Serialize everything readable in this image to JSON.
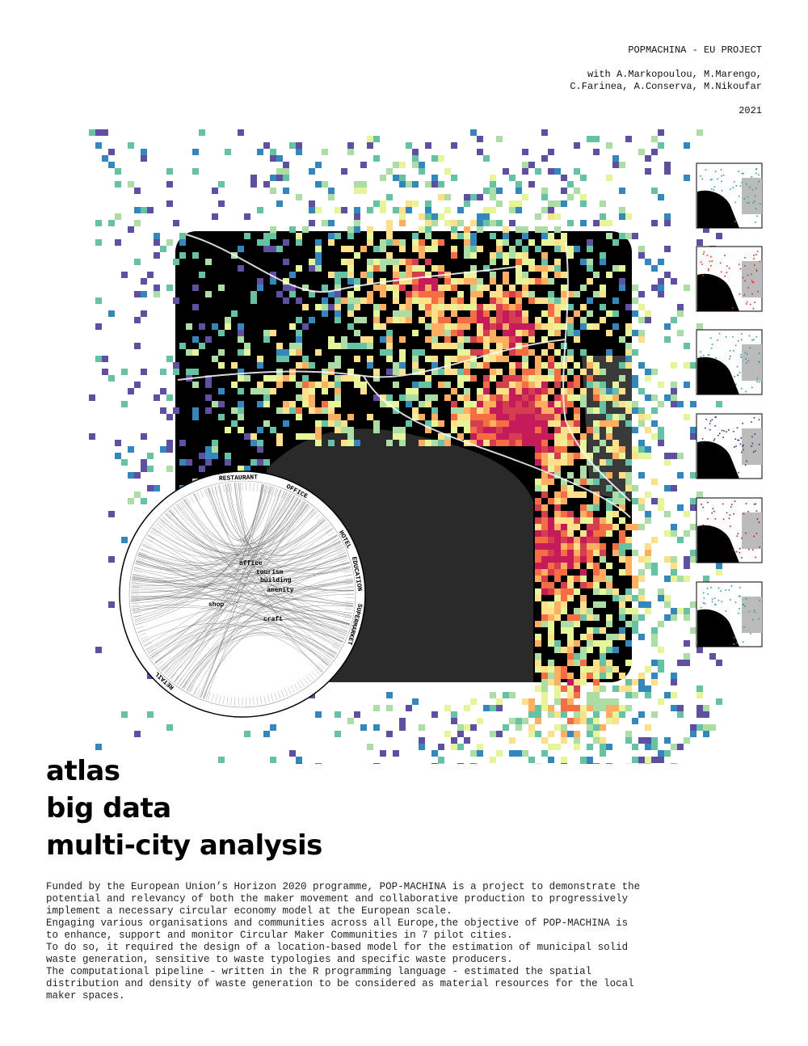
{
  "header": {
    "project": "POPMACHINA - EU PROJECT",
    "credits": [
      "with A.Markopoulou, M.Marengo,",
      "C.Farinea, A.Conserva, M.Nikoufar"
    ],
    "year": "2021"
  },
  "diagram": {
    "categories": [
      "RESTAURANT",
      "OFFICE",
      "HOTEL",
      "EDUCATION",
      "SUPERMARKET",
      "RETAIL"
    ],
    "tags": [
      "office",
      "tourism",
      "building",
      "amenity",
      "shop",
      "craft"
    ]
  },
  "title": [
    "atlas",
    "big data",
    "multi-city analysis"
  ],
  "body": [
    "Funded by the European Union’s Horizon 2020 programme, POP-MACHINA is a project to demonstrate the",
    "potential and relevancy of both the maker movement and collaborative production to progressively",
    "implement a necessary circular economy model at the European scale.",
    "Engaging various organisations and communities across all Europe,the objective of POP-MACHINA is",
    "to enhance, support and monitor Circular Maker Communities in 7 pilot cities.",
    "To do so, it required the design of a location-based model for the estimation of municipal solid",
    "waste generation, sensitive to waste typologies and specific waste producers.",
    "The computational pipeline - written in the R programming language - estimated the spatial",
    "distribution and density of waste generation to be considered as material resources for the local",
    "maker spaces."
  ]
}
